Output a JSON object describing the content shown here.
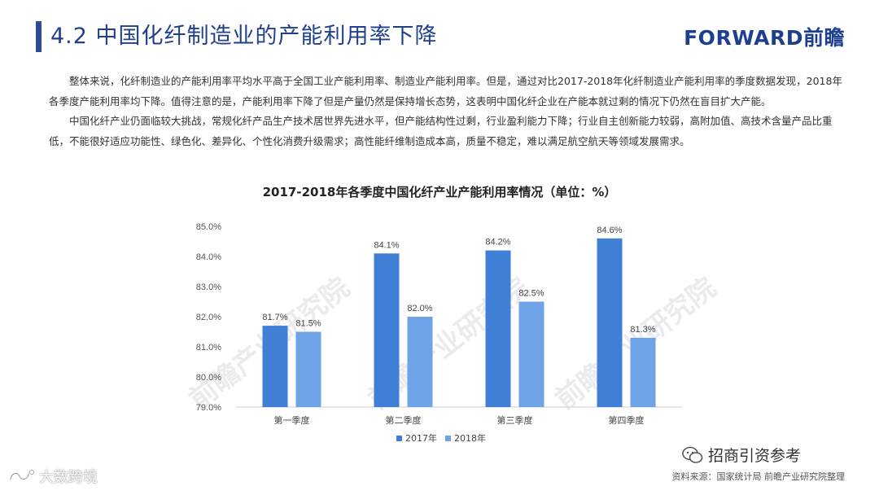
{
  "slide": {
    "title": "4.2 中国化纤制造业的产能利用率下降",
    "brand": "FORWARD前瞻"
  },
  "body": {
    "paragraphs": [
      "整体来说，化纤制造业的产能利用率平均水平高于全国工业产能利用率、制造业产能利用率。但是，通过对比2017-2018年化纤制造业产能利用率的季度数据发现，2018年各季度产能利用率均下降。值得注意的是，产能利用率下降了但是产量仍然是保持增长态势，这表明中国化纤企业在产能本就过剩的情况下仍然在盲目扩大产能。",
      "中国化纤产业仍面临较大挑战，常规化纤产品生产技术居世界先进水平，但产能结构性过剩，行业盈利能力下降；行业自主创新能力较弱，高附加值、高技术含量产品比重低，不能很好适应功能性、绿色化、差异化、个性化消费升级需求；高性能纤维制造成本高，质量不稳定，难以满足航空航天等领域发展需求。"
    ]
  },
  "chart_data": {
    "type": "bar",
    "title": "2017-2018年各季度中国化纤产业产能利用率情况（单位：%）",
    "categories": [
      "第一季度",
      "第二季度",
      "第三季度",
      "第四季度"
    ],
    "series": [
      {
        "name": "2017年",
        "values": [
          81.7,
          84.1,
          84.2,
          84.6
        ],
        "labels": [
          "81.7%",
          "84.1%",
          "84.2%",
          "84.6%"
        ],
        "color": "#3f7fd6"
      },
      {
        "name": "2018年",
        "values": [
          81.5,
          82.0,
          82.5,
          81.3
        ],
        "labels": [
          "81.5%",
          "82.0%",
          "82.5%",
          "81.3%"
        ],
        "color": "#6fa3e8"
      }
    ],
    "ylim": [
      79.0,
      85.0
    ],
    "yticks": [
      79.0,
      80.0,
      81.0,
      82.0,
      83.0,
      84.0,
      85.0
    ],
    "ytick_labels": [
      "79.0%",
      "80.0%",
      "81.0%",
      "82.0%",
      "83.0%",
      "84.0%",
      "85.0%"
    ],
    "grid": false,
    "legend_position": "bottom"
  },
  "footer": {
    "source": "资料来源：国家统计局  前瞻产业研究院整理",
    "wechat": "招商引资参考",
    "bottom_logo": "大数跨境"
  },
  "colors": {
    "title": "#203f8c",
    "accent_bar": "#2a4c9a",
    "series_2017": "#3f7fd6",
    "series_2018": "#6fa3e8"
  },
  "watermark_text": "前瞻产业研究院"
}
